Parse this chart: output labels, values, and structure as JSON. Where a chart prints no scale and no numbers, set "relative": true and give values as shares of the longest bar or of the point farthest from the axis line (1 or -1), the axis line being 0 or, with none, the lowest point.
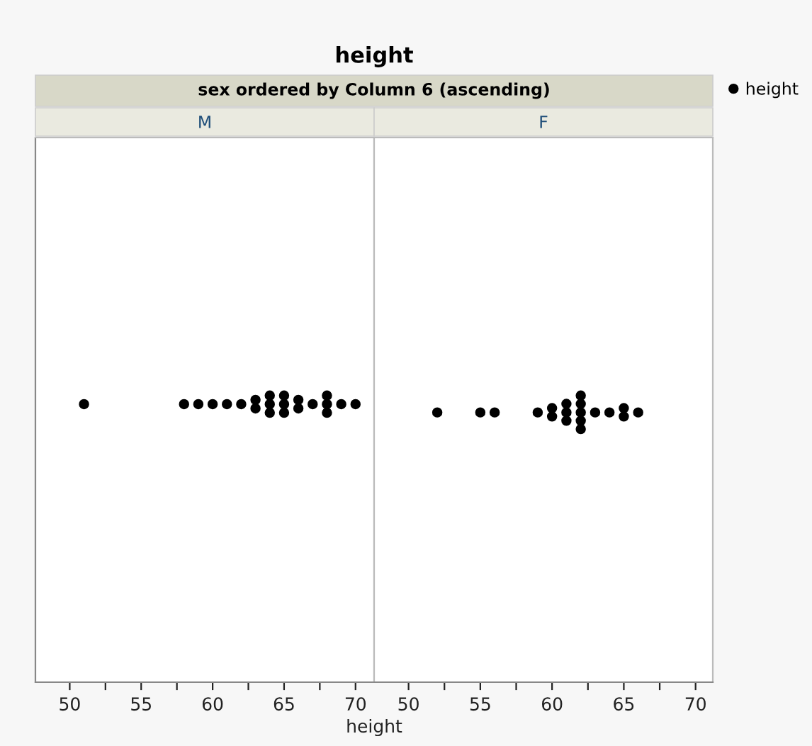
{
  "chart_data": [
    {
      "type": "scatter",
      "title": "M",
      "annotations": [
        "height",
        "sex ordered by Column 6 (ascending)"
      ],
      "xlabel": "height",
      "x": [
        51,
        58,
        59,
        60,
        61,
        62,
        63,
        63,
        64,
        64,
        64,
        65,
        65,
        65,
        66,
        66,
        67,
        68,
        68,
        68,
        69,
        70
      ],
      "series": [
        {
          "color": "#000000",
          "values": [
            0.97,
            0.97,
            0.97,
            0.97,
            0.97,
            0.97,
            0.985,
            0.955,
            1,
            0.97,
            0.94,
            1,
            0.97,
            0.94,
            0.985,
            0.955,
            0.97,
            1,
            0.97,
            0.94,
            0.97,
            0.97
          ]
        }
      ],
      "relative": true,
      "marker": "circle",
      "grid": false,
      "tick_labels": "x",
      "xlim": [
        47.6,
        71.3
      ],
      "xticks": [
        50,
        {
          "value": 52.5,
          "label": null
        },
        55,
        {
          "value": 57.5,
          "label": null
        },
        60,
        {
          "value": 62.5,
          "label": null
        },
        65,
        {
          "value": 67.5,
          "label": null
        },
        70
      ]
    },
    {
      "type": "scatter",
      "title": "F",
      "x": [
        52,
        55,
        56,
        59,
        60,
        60,
        61,
        61,
        61,
        62,
        62,
        62,
        62,
        62,
        63,
        64,
        65,
        65,
        66
      ],
      "series": [
        {
          "name": "height",
          "color": "#000000",
          "values": [
            0.941,
            0.941,
            0.941,
            0.941,
            0.956,
            0.927,
            0.971,
            0.941,
            0.912,
            1,
            0.971,
            0.941,
            0.912,
            0.883,
            0.941,
            0.941,
            0.956,
            0.927,
            0.941
          ]
        }
      ],
      "relative": true,
      "marker": "circle",
      "grid": false,
      "tick_labels": "x",
      "legend": "top right",
      "xlim": [
        47.6,
        71.2
      ],
      "xticks": [
        50,
        {
          "value": 52.5,
          "label": null
        },
        55,
        {
          "value": 57.5,
          "label": null
        },
        60,
        {
          "value": 62.5,
          "label": null
        },
        65,
        {
          "value": 67.5,
          "label": null
        },
        70
      ]
    }
  ]
}
